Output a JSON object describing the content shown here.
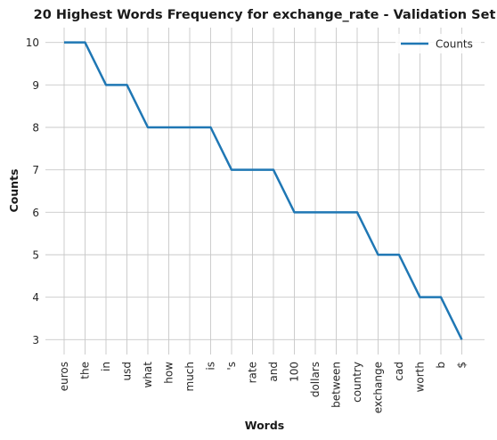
{
  "chart_data": {
    "type": "line",
    "title": "20 Highest Words Frequency for exchange_rate - Validation Set",
    "xlabel": "Words",
    "ylabel": "Counts",
    "categories": [
      "euros",
      "the",
      "in",
      "usd",
      "what",
      "how",
      "much",
      "is",
      "'s",
      "rate",
      "and",
      "100",
      "dollars",
      "between",
      "country",
      "exchange",
      "cad",
      "worth",
      "b",
      "$"
    ],
    "series": [
      {
        "name": "Counts",
        "values": [
          10,
          10,
          9,
          9,
          8,
          8,
          8,
          8,
          7,
          7,
          7,
          6,
          6,
          6,
          6,
          5,
          5,
          4,
          4,
          3
        ],
        "color": "#1f77b4"
      }
    ],
    "yticks": [
      3,
      4,
      5,
      6,
      7,
      8,
      9,
      10
    ],
    "ylim": [
      2.65,
      10.35
    ],
    "grid": true,
    "legend_position": "top-right"
  }
}
